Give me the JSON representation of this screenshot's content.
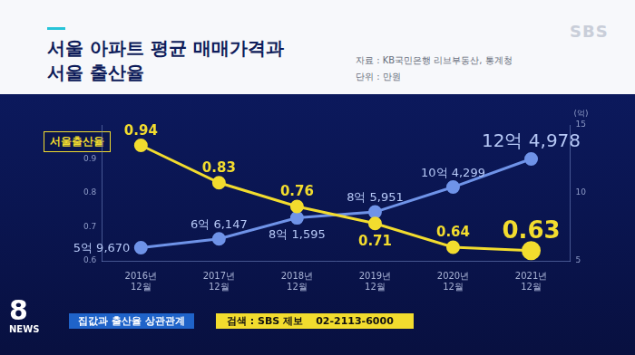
{
  "chart_data": {
    "type": "line",
    "title": "서울 아파트 평균 매매가격과\n서울 출산율",
    "source": "자료 : KB국민은행 리브부동산, 통계청",
    "unit_note": "단위 : 만원",
    "y2_label": "(억)",
    "categories": [
      "2016년 12월",
      "2017년 12월",
      "2018년 12월",
      "2019년 12월",
      "2020년 12월",
      "2021년 12월"
    ],
    "series": [
      {
        "name": "서울출산율",
        "color": "#f2dc2e",
        "marker": "circle",
        "values": [
          0.94,
          0.83,
          0.76,
          0.71,
          0.64,
          0.63
        ]
      },
      {
        "color": "#6f93e8",
        "marker": "circle",
        "axis": "y2",
        "values": [
          5.967,
          6.6147,
          8.1595,
          8.5951,
          10.4299,
          12.4978
        ],
        "value_labels": [
          "5억 9,670",
          "6억 6,147",
          "8억 1,595",
          "8억 5,951",
          "10억 4,299",
          "12억 4,978"
        ]
      }
    ],
    "ylim": [
      0.6,
      1.0
    ],
    "yticks": [
      0.6,
      0.7,
      0.8,
      0.9
    ],
    "y2lim": [
      5,
      15
    ],
    "y2ticks": [
      5,
      10,
      15
    ],
    "grid": false,
    "data_labels": true
  },
  "page": {
    "logo": "SBS",
    "program": "8",
    "program_sub": "NEWS",
    "headline": "집값과 출산율 상관관계",
    "search": "검색 : SBS 제보",
    "phone": "02-2113-6000"
  }
}
